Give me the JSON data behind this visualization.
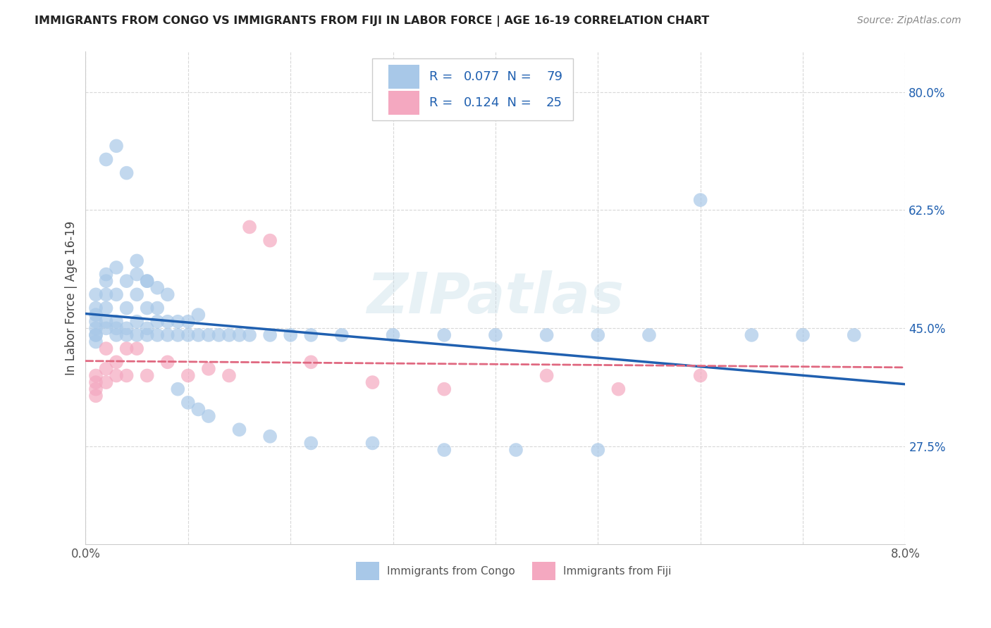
{
  "title": "IMMIGRANTS FROM CONGO VS IMMIGRANTS FROM FIJI IN LABOR FORCE | AGE 16-19 CORRELATION CHART",
  "source": "Source: ZipAtlas.com",
  "ylabel": "In Labor Force | Age 16-19",
  "xlim": [
    0.0,
    0.08
  ],
  "ylim": [
    0.13,
    0.86
  ],
  "xticks": [
    0.0,
    0.01,
    0.02,
    0.03,
    0.04,
    0.05,
    0.06,
    0.07,
    0.08
  ],
  "xticklabels": [
    "0.0%",
    "",
    "",
    "",
    "",
    "",
    "",
    "",
    "8.0%"
  ],
  "yticks": [
    0.275,
    0.45,
    0.625,
    0.8
  ],
  "yticklabels": [
    "27.5%",
    "45.0%",
    "62.5%",
    "80.0%"
  ],
  "congo_color": "#a8c8e8",
  "fiji_color": "#f4a8c0",
  "congo_line_color": "#2060b0",
  "fiji_line_color": "#e06880",
  "tick_label_color": "#2060b0",
  "congo_R": "0.077",
  "congo_N": "79",
  "fiji_R": "0.124",
  "fiji_N": "25",
  "watermark": "ZIPatlas",
  "grid_color": "#d8d8d8",
  "title_color": "#222222",
  "source_color": "#888888",
  "congo_x": [
    0.001,
    0.001,
    0.001,
    0.001,
    0.001,
    0.001,
    0.001,
    0.001,
    0.002,
    0.002,
    0.002,
    0.002,
    0.002,
    0.002,
    0.003,
    0.003,
    0.003,
    0.003,
    0.003,
    0.004,
    0.004,
    0.004,
    0.004,
    0.005,
    0.005,
    0.005,
    0.006,
    0.006,
    0.006,
    0.006,
    0.007,
    0.007,
    0.007,
    0.008,
    0.008,
    0.009,
    0.009,
    0.01,
    0.01,
    0.011,
    0.011,
    0.012,
    0.013,
    0.014,
    0.015,
    0.016,
    0.018,
    0.02,
    0.022,
    0.025,
    0.03,
    0.035,
    0.04,
    0.045,
    0.05,
    0.055,
    0.06,
    0.065,
    0.07,
    0.075,
    0.002,
    0.003,
    0.004,
    0.005,
    0.005,
    0.006,
    0.007,
    0.008,
    0.009,
    0.01,
    0.011,
    0.012,
    0.015,
    0.018,
    0.022,
    0.028,
    0.035,
    0.042,
    0.05
  ],
  "congo_y": [
    0.44,
    0.44,
    0.43,
    0.45,
    0.46,
    0.47,
    0.48,
    0.5,
    0.53,
    0.52,
    0.5,
    0.48,
    0.46,
    0.45,
    0.44,
    0.45,
    0.46,
    0.5,
    0.54,
    0.44,
    0.45,
    0.48,
    0.52,
    0.44,
    0.46,
    0.5,
    0.44,
    0.45,
    0.48,
    0.52,
    0.44,
    0.46,
    0.48,
    0.44,
    0.46,
    0.44,
    0.46,
    0.44,
    0.46,
    0.44,
    0.47,
    0.44,
    0.44,
    0.44,
    0.44,
    0.44,
    0.44,
    0.44,
    0.44,
    0.44,
    0.44,
    0.44,
    0.44,
    0.44,
    0.44,
    0.44,
    0.64,
    0.44,
    0.44,
    0.44,
    0.7,
    0.72,
    0.68,
    0.55,
    0.53,
    0.52,
    0.51,
    0.5,
    0.36,
    0.34,
    0.33,
    0.32,
    0.3,
    0.29,
    0.28,
    0.28,
    0.27,
    0.27,
    0.27
  ],
  "fiji_x": [
    0.001,
    0.001,
    0.001,
    0.001,
    0.002,
    0.002,
    0.002,
    0.003,
    0.003,
    0.004,
    0.004,
    0.005,
    0.006,
    0.008,
    0.01,
    0.012,
    0.014,
    0.016,
    0.018,
    0.022,
    0.028,
    0.035,
    0.045,
    0.052,
    0.06
  ],
  "fiji_y": [
    0.38,
    0.37,
    0.36,
    0.35,
    0.37,
    0.39,
    0.42,
    0.38,
    0.4,
    0.38,
    0.42,
    0.42,
    0.38,
    0.4,
    0.38,
    0.39,
    0.38,
    0.6,
    0.58,
    0.4,
    0.37,
    0.36,
    0.38,
    0.36,
    0.38
  ]
}
